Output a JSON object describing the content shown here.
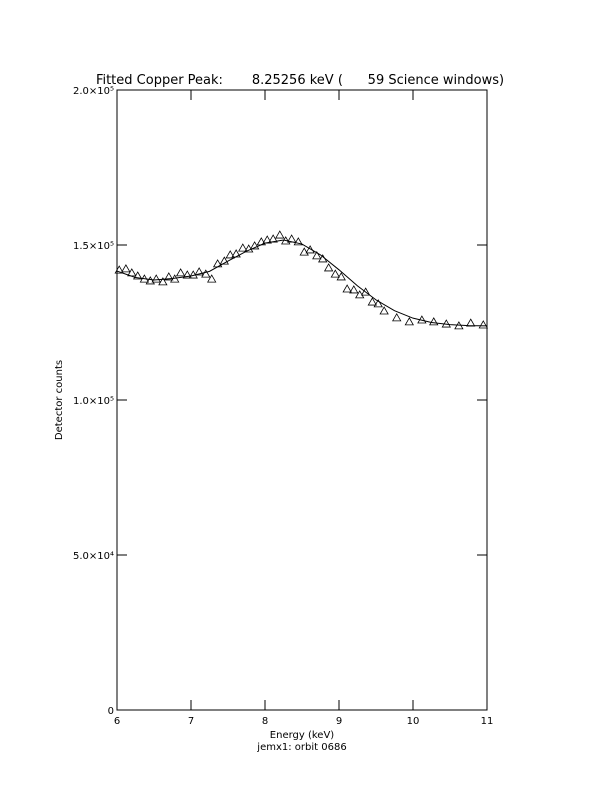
{
  "chart_data": {
    "type": "scatter",
    "title": "Fitted Copper Peak:       8.25256 keV (      59 Science windows)",
    "x_label": "Energy (keV)",
    "subtitle": "jemx1: orbit 0686",
    "y_label": "Detector counts",
    "xlim": [
      6,
      11
    ],
    "xticks": [
      6,
      7,
      8,
      9,
      10,
      11
    ],
    "ylim": [
      0,
      200000
    ],
    "yticks": [
      {
        "value": 0,
        "label": "0"
      },
      {
        "value": 50000,
        "label": "5.0×10⁴"
      },
      {
        "value": 100000,
        "label": "1.0×10⁵"
      },
      {
        "value": 150000,
        "label": "1.5×10⁵"
      },
      {
        "value": 200000,
        "label": "2.0×10⁵"
      }
    ],
    "series": [
      {
        "color": "#000000",
        "marker": "triangle",
        "x": [
          6.03,
          6.12,
          6.2,
          6.28,
          6.37,
          6.45,
          6.53,
          6.62,
          6.7,
          6.78,
          6.86,
          6.95,
          7.03,
          7.11,
          7.2,
          7.28,
          7.36,
          7.45,
          7.53,
          7.61,
          7.7,
          7.78,
          7.86,
          7.95,
          8.03,
          8.11,
          8.2,
          8.28,
          8.36,
          8.45,
          8.53,
          8.61,
          8.7,
          8.78,
          8.86,
          8.95,
          9.03,
          9.11,
          9.2,
          9.28,
          9.36,
          9.45,
          9.53,
          9.61,
          9.78,
          9.95,
          10.12,
          10.28,
          10.45,
          10.62,
          10.78,
          10.95
        ],
        "values": [
          141900,
          142300,
          141000,
          140000,
          139000,
          138400,
          139000,
          138100,
          139700,
          139000,
          141000,
          140300,
          140300,
          141300,
          140600,
          139000,
          143900,
          144800,
          146800,
          147100,
          149000,
          148700,
          149700,
          151000,
          151600,
          151900,
          153200,
          151300,
          151900,
          151000,
          147700,
          148400,
          146500,
          145500,
          142600,
          140600,
          139700,
          135800,
          135500,
          133900,
          134800,
          131600,
          131000,
          128700,
          126500,
          125200,
          125800,
          125200,
          124500,
          123900,
          124800,
          124200
        ]
      },
      {
        "color": "#000000",
        "marker": "line",
        "x": [
          6,
          6.25,
          6.5,
          6.75,
          7,
          7.25,
          7.5,
          7.75,
          8,
          8.25,
          8.5,
          8.75,
          9,
          9.25,
          9.5,
          9.75,
          10,
          10.25,
          10.5,
          10.75,
          11
        ],
        "values": [
          141600,
          139500,
          138700,
          139200,
          140000,
          141500,
          144800,
          148000,
          150600,
          151600,
          150300,
          146800,
          142000,
          136800,
          132300,
          128800,
          126400,
          125000,
          124300,
          124000,
          123900
        ]
      }
    ]
  }
}
